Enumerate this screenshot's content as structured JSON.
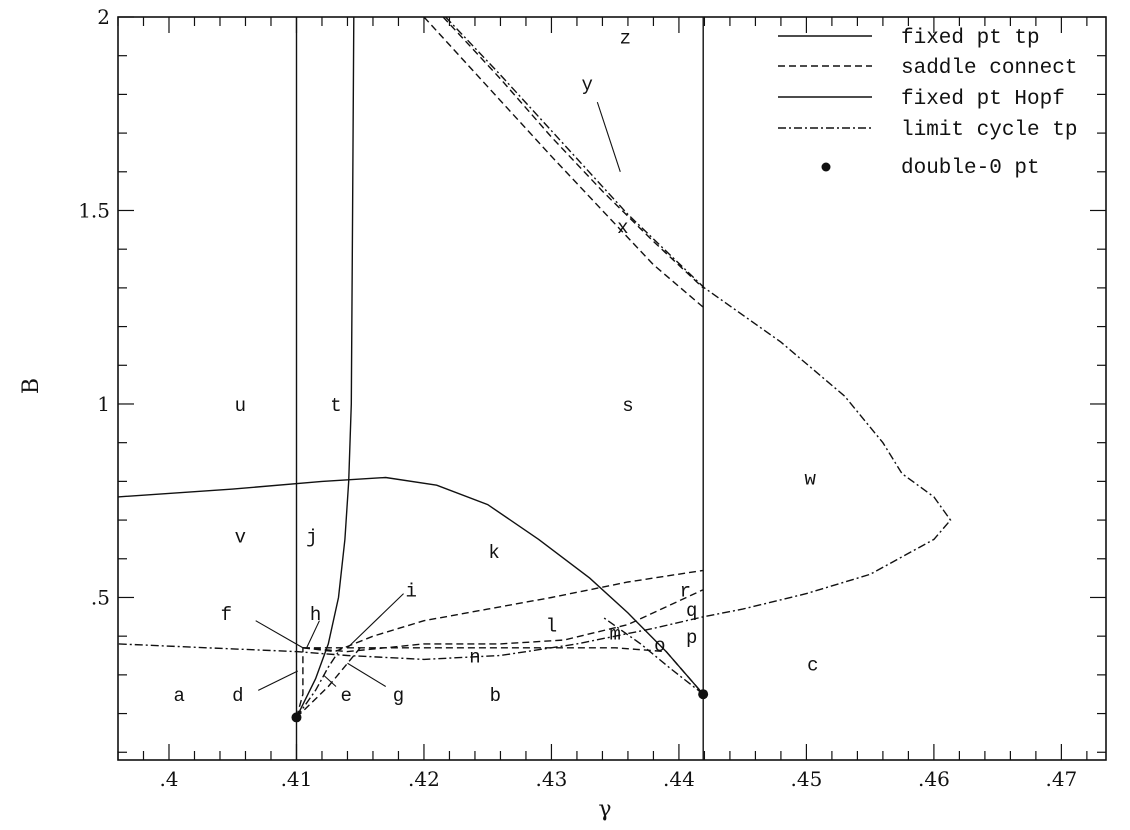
{
  "chart_data": {
    "type": "line",
    "title": "",
    "xlabel": "γ",
    "ylabel": "B",
    "xlim": [
      0.396,
      0.4735
    ],
    "ylim": [
      0.08,
      2.0
    ],
    "xticks": [
      {
        "v": 0.4,
        "label": ".4"
      },
      {
        "v": 0.41,
        "label": ".41"
      },
      {
        "v": 0.42,
        "label": ".42"
      },
      {
        "v": 0.43,
        "label": ".43"
      },
      {
        "v": 0.44,
        "label": ".44"
      },
      {
        "v": 0.45,
        "label": ".45"
      },
      {
        "v": 0.46,
        "label": ".46"
      },
      {
        "v": 0.47,
        "label": ".47"
      }
    ],
    "yticks": [
      {
        "v": 0.5,
        "label": ".5"
      },
      {
        "v": 1.0,
        "label": "1"
      },
      {
        "v": 1.5,
        "label": "1.5"
      },
      {
        "v": 2.0,
        "label": "2"
      }
    ],
    "legend_position": "top-right",
    "legend": [
      {
        "label": "fixed pt tp",
        "style": "solid"
      },
      {
        "label": "saddle connect",
        "style": "dashed"
      },
      {
        "label": "fixed pt Hopf",
        "style": "solid"
      },
      {
        "label": "limit cycle tp",
        "style": "dashdot"
      },
      {
        "label": "double-0 pt",
        "style": "dot"
      }
    ],
    "series": [
      {
        "style": "solid",
        "points": [
          [
            0.41,
            0.08
          ],
          [
            0.41,
            2.0
          ]
        ]
      },
      {
        "style": "solid",
        "points": [
          [
            0.4419,
            0.08
          ],
          [
            0.4419,
            2.0
          ]
        ]
      },
      {
        "style": "solid",
        "points": [
          [
            0.41,
            0.19
          ],
          [
            0.4115,
            0.29
          ],
          [
            0.4125,
            0.38
          ],
          [
            0.4133,
            0.5
          ],
          [
            0.4138,
            0.65
          ],
          [
            0.4141,
            0.8
          ],
          [
            0.4143,
            1.0
          ],
          [
            0.4144,
            1.5
          ],
          [
            0.4145,
            2.0
          ]
        ]
      },
      {
        "style": "solid",
        "points": [
          [
            0.396,
            0.76
          ],
          [
            0.405,
            0.78
          ],
          [
            0.412,
            0.8
          ],
          [
            0.417,
            0.81
          ],
          [
            0.421,
            0.79
          ],
          [
            0.425,
            0.74
          ],
          [
            0.429,
            0.65
          ],
          [
            0.433,
            0.55
          ],
          [
            0.436,
            0.46
          ],
          [
            0.439,
            0.36
          ],
          [
            0.4419,
            0.25
          ]
        ]
      },
      {
        "style": "dashed",
        "points": [
          [
            0.42,
            2.0
          ],
          [
            0.425,
            1.82
          ],
          [
            0.43,
            1.64
          ],
          [
            0.434,
            1.5
          ],
          [
            0.438,
            1.36
          ],
          [
            0.4419,
            1.25
          ]
        ]
      },
      {
        "style": "dashed",
        "points": [
          [
            0.4215,
            2.0
          ],
          [
            0.426,
            1.84
          ],
          [
            0.43,
            1.69
          ],
          [
            0.434,
            1.55
          ],
          [
            0.438,
            1.42
          ],
          [
            0.4419,
            1.3
          ]
        ]
      },
      {
        "style": "dashdot",
        "points": [
          [
            0.4217,
            2.0
          ],
          [
            0.426,
            1.85
          ],
          [
            0.431,
            1.67
          ],
          [
            0.436,
            1.49
          ],
          [
            0.442,
            1.3
          ],
          [
            0.448,
            1.16
          ],
          [
            0.453,
            1.02
          ],
          [
            0.456,
            0.9
          ],
          [
            0.4575,
            0.82
          ],
          [
            0.46,
            0.76
          ],
          [
            0.4613,
            0.7
          ],
          [
            0.46,
            0.65
          ],
          [
            0.455,
            0.56
          ],
          [
            0.45,
            0.51
          ],
          [
            0.445,
            0.47
          ],
          [
            0.4419,
            0.45
          ],
          [
            0.438,
            0.42
          ],
          [
            0.432,
            0.38
          ],
          [
            0.426,
            0.35
          ],
          [
            0.42,
            0.34
          ],
          [
            0.414,
            0.35
          ],
          [
            0.41,
            0.36
          ],
          [
            0.403,
            0.37
          ],
          [
            0.396,
            0.38
          ]
        ]
      },
      {
        "style": "dashed",
        "points": [
          [
            0.4105,
            0.37
          ],
          [
            0.415,
            0.37
          ],
          [
            0.42,
            0.37
          ],
          [
            0.425,
            0.37
          ],
          [
            0.43,
            0.37
          ],
          [
            0.435,
            0.37
          ],
          [
            0.439,
            0.36
          ],
          [
            0.4419,
            0.25
          ]
        ]
      },
      {
        "style": "dashed",
        "points": [
          [
            0.4105,
            0.37
          ],
          [
            0.413,
            0.36
          ],
          [
            0.416,
            0.4
          ],
          [
            0.42,
            0.44
          ],
          [
            0.425,
            0.47
          ],
          [
            0.43,
            0.5
          ],
          [
            0.436,
            0.54
          ],
          [
            0.4419,
            0.57
          ]
        ]
      },
      {
        "style": "dashed",
        "points": [
          [
            0.4105,
            0.37
          ],
          [
            0.414,
            0.36
          ],
          [
            0.42,
            0.38
          ],
          [
            0.426,
            0.38
          ],
          [
            0.431,
            0.39
          ],
          [
            0.436,
            0.43
          ],
          [
            0.4419,
            0.52
          ]
        ]
      },
      {
        "style": "dashed",
        "points": [
          [
            0.41,
            0.19
          ],
          [
            0.4105,
            0.25
          ],
          [
            0.4105,
            0.37
          ]
        ]
      },
      {
        "style": "dashdot",
        "points": [
          [
            0.41,
            0.19
          ],
          [
            0.4115,
            0.26
          ],
          [
            0.4125,
            0.32
          ],
          [
            0.4135,
            0.37
          ]
        ]
      },
      {
        "style": "dashed",
        "points": [
          [
            0.41,
            0.19
          ],
          [
            0.4125,
            0.27
          ],
          [
            0.414,
            0.33
          ],
          [
            0.415,
            0.37
          ]
        ]
      },
      {
        "style": "dashdot",
        "points": [
          [
            0.4419,
            0.25
          ],
          [
            0.4392,
            0.32
          ],
          [
            0.437,
            0.38
          ],
          [
            0.434,
            0.45
          ]
        ]
      }
    ],
    "double_zero_points": [
      [
        0.41,
        0.19
      ],
      [
        0.4419,
        0.25
      ]
    ],
    "region_labels": [
      {
        "t": "a",
        "x": 0.4008,
        "y": 0.25
      },
      {
        "t": "b",
        "x": 0.4256,
        "y": 0.25
      },
      {
        "t": "c",
        "x": 0.4505,
        "y": 0.33
      },
      {
        "t": "d",
        "x": 0.4054,
        "y": 0.25
      },
      {
        "t": "e",
        "x": 0.4139,
        "y": 0.25
      },
      {
        "t": "f",
        "x": 0.4045,
        "y": 0.46
      },
      {
        "t": "g",
        "x": 0.418,
        "y": 0.25
      },
      {
        "t": "h",
        "x": 0.4115,
        "y": 0.46
      },
      {
        "t": "i",
        "x": 0.419,
        "y": 0.52
      },
      {
        "t": "j",
        "x": 0.4112,
        "y": 0.66
      },
      {
        "t": "k",
        "x": 0.4255,
        "y": 0.62
      },
      {
        "t": "l",
        "x": 0.43,
        "y": 0.43
      },
      {
        "t": "m",
        "x": 0.435,
        "y": 0.41
      },
      {
        "t": "n",
        "x": 0.424,
        "y": 0.35
      },
      {
        "t": "o",
        "x": 0.4385,
        "y": 0.38
      },
      {
        "t": "p",
        "x": 0.441,
        "y": 0.4
      },
      {
        "t": "q",
        "x": 0.441,
        "y": 0.47
      },
      {
        "t": "r",
        "x": 0.4405,
        "y": 0.52
      },
      {
        "t": "s",
        "x": 0.436,
        "y": 1.0
      },
      {
        "t": "t",
        "x": 0.4131,
        "y": 1.0
      },
      {
        "t": "u",
        "x": 0.4056,
        "y": 1.0
      },
      {
        "t": "v",
        "x": 0.4056,
        "y": 0.66
      },
      {
        "t": "w",
        "x": 0.4503,
        "y": 0.81
      },
      {
        "t": "x",
        "x": 0.4356,
        "y": 1.46
      },
      {
        "t": "y",
        "x": 0.4328,
        "y": 1.83
      },
      {
        "t": "z",
        "x": 0.4358,
        "y": 1.95
      }
    ],
    "pointers": [
      {
        "from": [
          0.4068,
          0.44
        ],
        "to": [
          0.4105,
          0.37
        ]
      },
      {
        "from": [
          0.4118,
          0.44
        ],
        "to": [
          0.4108,
          0.37
        ]
      },
      {
        "from": [
          0.4184,
          0.51
        ],
        "to": [
          0.414,
          0.37
        ]
      },
      {
        "from": [
          0.407,
          0.26
        ],
        "to": [
          0.4101,
          0.31
        ]
      },
      {
        "from": [
          0.4131,
          0.27
        ],
        "to": [
          0.4121,
          0.3
        ]
      },
      {
        "from": [
          0.417,
          0.27
        ],
        "to": [
          0.414,
          0.33
        ]
      },
      {
        "from": [
          0.4336,
          1.78
        ],
        "to": [
          0.4354,
          1.6
        ]
      }
    ]
  }
}
